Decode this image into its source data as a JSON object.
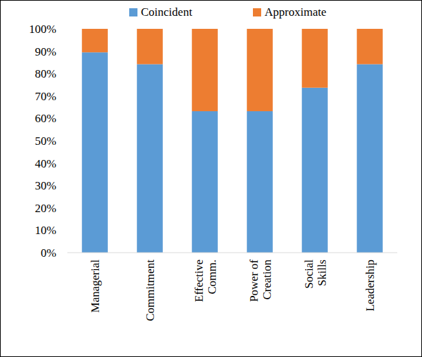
{
  "chart_data": {
    "type": "bar",
    "stacked": true,
    "categories": [
      "Managerial",
      "Commitment",
      "Effective Comm.",
      "Power of Creation",
      "Social Skills",
      "Leadership"
    ],
    "series": [
      {
        "name": "Coincident",
        "color": "#5b9bd5",
        "values": [
          89.5,
          84.2,
          63.2,
          63.2,
          73.7,
          84.2
        ]
      },
      {
        "name": "Approximate",
        "color": "#ed7d31",
        "values": [
          10.5,
          15.8,
          36.8,
          36.8,
          26.3,
          15.8
        ]
      }
    ],
    "ylim": [
      0,
      100
    ],
    "yticks": [
      {
        "value": 0,
        "label": "0%"
      },
      {
        "value": 10,
        "label": "10%"
      },
      {
        "value": 20,
        "label": "20%"
      },
      {
        "value": 30,
        "label": "30%"
      },
      {
        "value": 40,
        "label": "40%"
      },
      {
        "value": 50,
        "label": "50%"
      },
      {
        "value": 60,
        "label": "60%"
      },
      {
        "value": 70,
        "label": "70%"
      },
      {
        "value": 80,
        "label": "80%"
      },
      {
        "value": 90,
        "label": "90%"
      },
      {
        "value": 100,
        "label": "100%"
      }
    ],
    "grid": false,
    "legend": "top"
  }
}
